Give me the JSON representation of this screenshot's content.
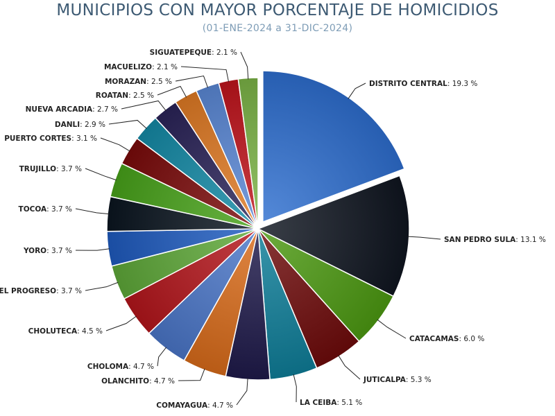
{
  "chart_data": {
    "type": "pie",
    "title": "MUNICIPIOS CON MAYOR PORCENTAJE DE HOMICIDIOS",
    "subtitle": "(01-ENE-2024 a 31-DIC-2024)",
    "slices": [
      {
        "label": "DISTRITO CENTRAL",
        "value": 19.3,
        "display": "19.3 %",
        "color": "#2e6fd0"
      },
      {
        "label": "SAN PEDRO SULA",
        "value": 13.1,
        "display": "13.1 %",
        "color": "#0f1520"
      },
      {
        "label": "CATACAMAS",
        "value": 6.0,
        "display": "6.0 %",
        "color": "#4d9a12"
      },
      {
        "label": "JUTICALPA",
        "value": 5.3,
        "display": "5.3 %",
        "color": "#6e0b0b"
      },
      {
        "label": "LA CEIBA",
        "value": 5.1,
        "display": "5.1 %",
        "color": "#0e7e99"
      },
      {
        "label": "COMAYAGUA",
        "value": 4.7,
        "display": "4.7 %",
        "color": "#1f1a4a"
      },
      {
        "label": "OLANCHITO",
        "value": 4.7,
        "display": "4.7 %",
        "color": "#d96b1a"
      },
      {
        "label": "CHOLOMA",
        "value": 4.7,
        "display": "4.7 %",
        "color": "#4a76c8"
      },
      {
        "label": "CHOLUTECA",
        "value": 4.5,
        "display": "4.5 %",
        "color": "#b3151b"
      },
      {
        "label": "EL PROGRESO",
        "value": 3.7,
        "display": "3.7 %",
        "color": "#5ea838"
      },
      {
        "label": "YORO",
        "value": 3.7,
        "display": "3.7 %",
        "color": "#1f5bbf"
      },
      {
        "label": "TOCOA",
        "value": 3.7,
        "display": "3.7 %",
        "color": "#0b1520"
      },
      {
        "label": "TRUJILLO",
        "value": 3.7,
        "display": "3.7 %",
        "color": "#48a21a"
      },
      {
        "label": "PUERTO CORTES",
        "value": 3.1,
        "display": "3.1 %",
        "color": "#7a0a0a"
      },
      {
        "label": "DANLI",
        "value": 2.9,
        "display": "2.9 %",
        "color": "#148aa6"
      },
      {
        "label": "NUEVA ARCADIA",
        "value": 2.7,
        "display": "2.7 %",
        "color": "#2a2358"
      },
      {
        "label": "ROATAN",
        "value": 2.5,
        "display": "2.5 %",
        "color": "#e07a24"
      },
      {
        "label": "MORAZAN",
        "value": 2.5,
        "display": "2.5 %",
        "color": "#5a88d6"
      },
      {
        "label": "MACUELIZO",
        "value": 2.1,
        "display": "2.1 %",
        "color": "#c0141c"
      },
      {
        "label": "SIGUATEPEQUE",
        "value": 2.1,
        "display": "2.1 %",
        "color": "#7cb447"
      }
    ],
    "exploded": "DISTRITO CENTRAL",
    "start_angle_deg": 0,
    "direction": "clockwise"
  }
}
